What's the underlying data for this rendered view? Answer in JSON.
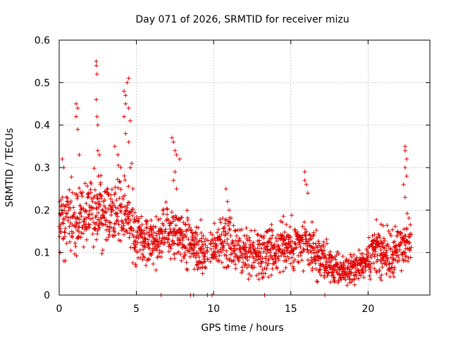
{
  "chart_data": {
    "type": "scatter",
    "title": "Day 071 of 2026, SRMTID for receiver mizu",
    "xlabel": "GPS time / hours",
    "ylabel": "SRMTID / TECUs",
    "xlim": [
      0,
      24
    ],
    "ylim": [
      0,
      0.6
    ],
    "x_ticks": [
      0,
      5,
      10,
      15,
      20
    ],
    "x_tick_labels": [
      "0",
      "5",
      "10",
      "15",
      "20"
    ],
    "y_ticks": [
      0,
      0.1,
      0.2,
      0.3,
      0.4,
      0.5,
      0.6
    ],
    "y_tick_labels": [
      "0",
      "0.1",
      "0.2",
      "0.3",
      "0.4",
      "0.5",
      "0.6"
    ],
    "grid": true,
    "marker": "plus",
    "series": [
      {
        "name": "SRMTID",
        "color": "#e00000",
        "trend": [
          [
            0.0,
            0.17
          ],
          [
            0.5,
            0.18
          ],
          [
            1.0,
            0.17
          ],
          [
            1.5,
            0.19
          ],
          [
            2.0,
            0.2
          ],
          [
            2.5,
            0.2
          ],
          [
            3.0,
            0.19
          ],
          [
            3.5,
            0.19
          ],
          [
            4.0,
            0.2
          ],
          [
            4.5,
            0.19
          ],
          [
            5.0,
            0.15
          ],
          [
            5.5,
            0.13
          ],
          [
            6.0,
            0.13
          ],
          [
            6.5,
            0.14
          ],
          [
            7.0,
            0.15
          ],
          [
            7.5,
            0.14
          ],
          [
            8.0,
            0.13
          ],
          [
            8.5,
            0.12
          ],
          [
            9.0,
            0.11
          ],
          [
            9.5,
            0.11
          ],
          [
            10.0,
            0.11
          ],
          [
            10.5,
            0.12
          ],
          [
            11.0,
            0.13
          ],
          [
            11.5,
            0.1
          ],
          [
            12.0,
            0.09
          ],
          [
            12.5,
            0.1
          ],
          [
            13.0,
            0.1
          ],
          [
            13.5,
            0.11
          ],
          [
            14.0,
            0.11
          ],
          [
            14.5,
            0.12
          ],
          [
            15.0,
            0.12
          ],
          [
            15.5,
            0.12
          ],
          [
            16.0,
            0.11
          ],
          [
            16.5,
            0.1
          ],
          [
            17.0,
            0.09
          ],
          [
            17.5,
            0.07
          ],
          [
            18.0,
            0.06
          ],
          [
            18.5,
            0.055
          ],
          [
            19.0,
            0.06
          ],
          [
            19.5,
            0.07
          ],
          [
            20.0,
            0.09
          ],
          [
            20.5,
            0.1
          ],
          [
            21.0,
            0.1
          ],
          [
            21.5,
            0.09
          ],
          [
            22.0,
            0.11
          ],
          [
            22.5,
            0.14
          ],
          [
            22.8,
            0.13
          ]
        ],
        "spikes": [
          [
            1.1,
            0.45
          ],
          [
            1.2,
            0.44
          ],
          [
            1.1,
            0.42
          ],
          [
            1.2,
            0.39
          ],
          [
            1.3,
            0.33
          ],
          [
            2.4,
            0.55
          ],
          [
            2.4,
            0.54
          ],
          [
            2.45,
            0.52
          ],
          [
            2.4,
            0.46
          ],
          [
            2.45,
            0.42
          ],
          [
            2.5,
            0.4
          ],
          [
            2.5,
            0.34
          ],
          [
            2.6,
            0.33
          ],
          [
            4.2,
            0.48
          ],
          [
            4.3,
            0.47
          ],
          [
            4.4,
            0.5
          ],
          [
            4.5,
            0.51
          ],
          [
            4.3,
            0.45
          ],
          [
            4.5,
            0.44
          ],
          [
            4.2,
            0.42
          ],
          [
            4.6,
            0.41
          ],
          [
            4.3,
            0.38
          ],
          [
            4.5,
            0.36
          ],
          [
            4.7,
            0.31
          ],
          [
            4.6,
            0.3
          ],
          [
            0.2,
            0.32
          ],
          [
            0.3,
            0.3
          ],
          [
            3.6,
            0.35
          ],
          [
            3.8,
            0.33
          ],
          [
            7.3,
            0.37
          ],
          [
            7.4,
            0.36
          ],
          [
            7.5,
            0.34
          ],
          [
            7.6,
            0.33
          ],
          [
            7.8,
            0.32
          ],
          [
            7.5,
            0.29
          ],
          [
            7.4,
            0.27
          ],
          [
            7.6,
            0.25
          ],
          [
            10.8,
            0.25
          ],
          [
            10.9,
            0.22
          ],
          [
            11.0,
            0.2
          ],
          [
            15.9,
            0.29
          ],
          [
            15.9,
            0.27
          ],
          [
            16.0,
            0.26
          ],
          [
            16.1,
            0.24
          ],
          [
            22.4,
            0.35
          ],
          [
            22.4,
            0.34
          ],
          [
            22.5,
            0.32
          ],
          [
            22.4,
            0.3
          ],
          [
            22.5,
            0.28
          ],
          [
            22.3,
            0.26
          ],
          [
            22.4,
            0.23
          ]
        ],
        "baseline_ticks": [
          6.6,
          8.5,
          8.7,
          9.6,
          9.9,
          13.3,
          17.2
        ]
      }
    ]
  }
}
